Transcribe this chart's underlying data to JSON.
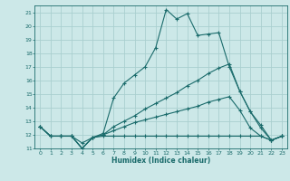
{
  "background_color": "#cce8e8",
  "grid_color": "#aacfcf",
  "line_color": "#1a6b6b",
  "ylim": [
    11,
    21.5
  ],
  "xlim": [
    -0.5,
    23.5
  ],
  "yticks": [
    11,
    12,
    13,
    14,
    15,
    16,
    17,
    18,
    19,
    20,
    21
  ],
  "xticks": [
    0,
    1,
    2,
    3,
    4,
    5,
    6,
    7,
    8,
    9,
    10,
    11,
    12,
    13,
    14,
    15,
    16,
    17,
    18,
    19,
    20,
    21,
    22,
    23
  ],
  "xlabel": "Humidex (Indice chaleur)",
  "lines": [
    [
      12.6,
      11.9,
      11.9,
      11.9,
      11.0,
      11.8,
      12.1,
      14.7,
      15.8,
      16.4,
      17.0,
      18.4,
      21.2,
      20.5,
      20.9,
      19.3,
      19.4,
      19.5,
      17.0,
      15.2,
      13.7,
      12.5,
      11.6,
      11.9
    ],
    [
      12.6,
      11.9,
      11.9,
      11.9,
      11.0,
      11.8,
      12.0,
      12.6,
      13.0,
      13.4,
      13.9,
      14.3,
      14.7,
      15.1,
      15.6,
      16.0,
      16.5,
      16.9,
      17.2,
      15.2,
      13.7,
      12.7,
      11.6,
      11.9
    ],
    [
      12.6,
      11.9,
      11.9,
      11.9,
      11.0,
      11.8,
      12.0,
      12.3,
      12.6,
      12.9,
      13.1,
      13.3,
      13.5,
      13.7,
      13.9,
      14.1,
      14.4,
      14.6,
      14.8,
      13.8,
      12.5,
      11.9,
      11.6,
      11.9
    ],
    [
      12.6,
      11.9,
      11.9,
      11.9,
      11.4,
      11.8,
      11.9,
      11.9,
      11.9,
      11.9,
      11.9,
      11.9,
      11.9,
      11.9,
      11.9,
      11.9,
      11.9,
      11.9,
      11.9,
      11.9,
      11.9,
      11.9,
      11.6,
      11.9
    ]
  ]
}
